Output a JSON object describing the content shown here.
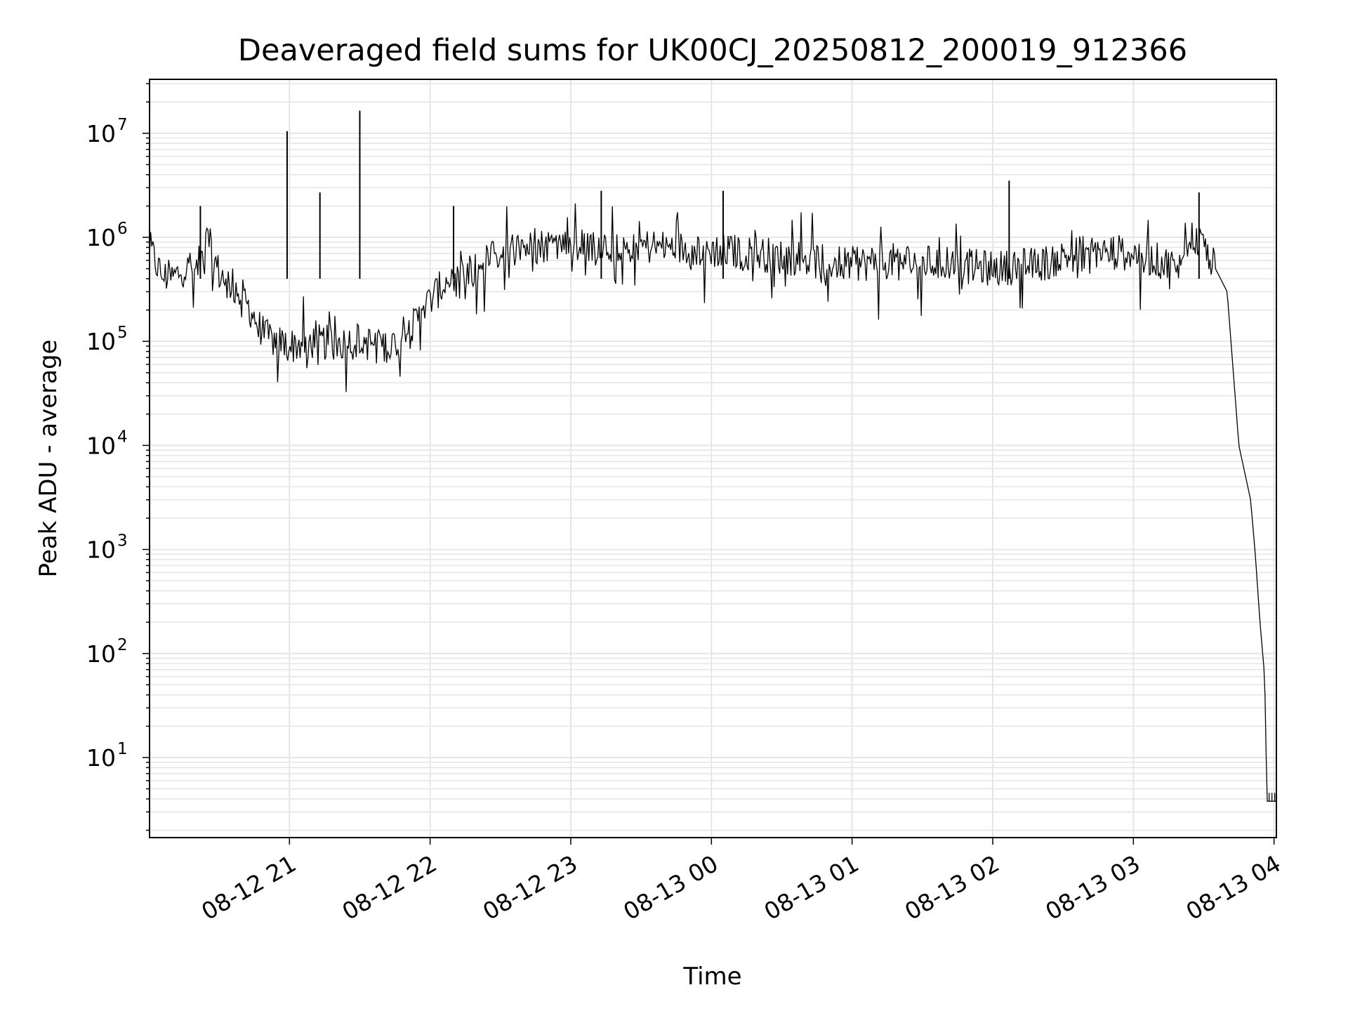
{
  "chart_data": {
    "type": "line",
    "title": "Deaveraged field sums for UK00CJ_20250812_200019_912366",
    "xlabel": "Time",
    "ylabel": "Peak ADU - average",
    "yscale": "log",
    "ylim": [
      1.7,
      33000000
    ],
    "xlim": [
      "2025-08-12 20:00:19",
      "2025-08-13 04:01:00"
    ],
    "grid": true,
    "line_color": "#000000",
    "grid_color": "#e6e6e6",
    "x_ticks": [
      {
        "value": "2025-08-12 21:00:00",
        "label": "08-12 21"
      },
      {
        "value": "2025-08-12 22:00:00",
        "label": "08-12 22"
      },
      {
        "value": "2025-08-12 23:00:00",
        "label": "08-12 23"
      },
      {
        "value": "2025-08-13 00:00:00",
        "label": "08-13 00"
      },
      {
        "value": "2025-08-13 01:00:00",
        "label": "08-13 01"
      },
      {
        "value": "2025-08-13 02:00:00",
        "label": "08-13 02"
      },
      {
        "value": "2025-08-13 03:00:00",
        "label": "08-13 03"
      },
      {
        "value": "2025-08-13 04:00:00",
        "label": "08-13 04"
      }
    ],
    "y_ticks": [
      {
        "value": 10,
        "base": "10",
        "exp": "1"
      },
      {
        "value": 100,
        "base": "10",
        "exp": "2"
      },
      {
        "value": 1000,
        "base": "10",
        "exp": "3"
      },
      {
        "value": 10000,
        "base": "10",
        "exp": "4"
      },
      {
        "value": 100000,
        "base": "10",
        "exp": "5"
      },
      {
        "value": 1000000,
        "base": "10",
        "exp": "6"
      },
      {
        "value": 10000000,
        "base": "10",
        "exp": "7"
      }
    ],
    "series": [
      {
        "x": [
          "2025-08-12 20:00:19",
          "2025-08-12 20:05:00",
          "2025-08-12 20:10:00",
          "2025-08-12 20:15:00",
          "2025-08-12 20:20:00",
          "2025-08-12 20:25:00",
          "2025-08-12 20:30:00",
          "2025-08-12 20:40:00",
          "2025-08-12 20:50:00",
          "2025-08-12 21:00:00",
          "2025-08-12 21:10:00",
          "2025-08-12 21:20:00",
          "2025-08-12 21:30:00",
          "2025-08-12 21:40:00",
          "2025-08-12 21:50:00",
          "2025-08-12 22:00:00",
          "2025-08-12 22:10:00",
          "2025-08-12 22:20:00",
          "2025-08-12 22:30:00",
          "2025-08-12 22:40:00",
          "2025-08-12 22:50:00",
          "2025-08-12 23:00:00",
          "2025-08-12 23:20:00",
          "2025-08-12 23:40:00",
          "2025-08-13 00:00:00",
          "2025-08-13 00:20:00",
          "2025-08-13 00:40:00",
          "2025-08-13 01:00:00",
          "2025-08-13 01:20:00",
          "2025-08-13 01:40:00",
          "2025-08-13 02:00:00",
          "2025-08-13 02:20:00",
          "2025-08-13 02:40:00",
          "2025-08-13 03:00:00",
          "2025-08-13 03:10:00",
          "2025-08-13 03:20:00",
          "2025-08-13 03:25:00",
          "2025-08-13 03:30:00",
          "2025-08-13 03:35:00",
          "2025-08-13 03:40:00",
          "2025-08-13 03:45:00",
          "2025-08-13 03:50:00",
          "2025-08-13 03:52:00",
          "2025-08-13 03:54:00",
          "2025-08-13 03:56:00",
          "2025-08-13 03:57:00",
          "2025-08-13 04:01:00"
        ],
        "y": [
          800000,
          450000,
          400000,
          500000,
          450000,
          950000,
          450000,
          270000,
          110000,
          90000,
          100000,
          95000,
          100000,
          90000,
          110000,
          250000,
          450000,
          500000,
          750000,
          800000,
          850000,
          900000,
          850000,
          800000,
          750000,
          700000,
          600000,
          550000,
          600000,
          550000,
          500000,
          550000,
          750000,
          700000,
          600000,
          500000,
          1000000,
          850000,
          500000,
          300000,
          10000,
          3000,
          900,
          200,
          60,
          3.8,
          3.8
        ],
        "spikes": [
          {
            "x": "2025-08-12 20:59:00",
            "y": 10500000
          },
          {
            "x": "2025-08-12 21:30:00",
            "y": 16500000
          },
          {
            "x": "2025-08-12 21:13:00",
            "y": 2700000
          },
          {
            "x": "2025-08-12 20:22:00",
            "y": 2000000
          },
          {
            "x": "2025-08-12 23:13:00",
            "y": 2800000
          },
          {
            "x": "2025-08-13 00:05:00",
            "y": 2800000
          },
          {
            "x": "2025-08-13 02:07:00",
            "y": 3500000
          },
          {
            "x": "2025-08-13 03:28:00",
            "y": 2700000
          },
          {
            "x": "2025-08-12 22:10:00",
            "y": 2000000
          }
        ]
      }
    ]
  }
}
